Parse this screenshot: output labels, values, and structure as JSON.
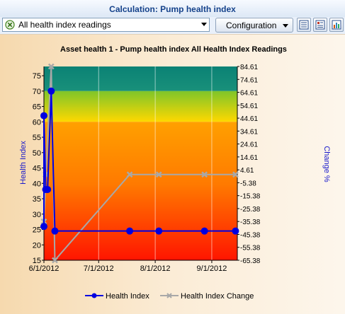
{
  "window": {
    "title": "Calculation: Pump health index"
  },
  "toolbar": {
    "selector_value": "All health index readings",
    "configuration_label": "Configuration"
  },
  "chart": {
    "title": "Asset health 1 - Pump health index All Health Index Readings",
    "y_left_label": "Health Index",
    "y_right_label": "Change %",
    "x_ticks": [
      "6/1/2012",
      "7/1/2012",
      "8/1/2012",
      "9/1/2012"
    ],
    "y_left_ticks": [
      "15",
      "20",
      "25",
      "30",
      "35",
      "40",
      "45",
      "50",
      "55",
      "60",
      "65",
      "70",
      "75"
    ],
    "y_right_ticks": [
      "84.61",
      "74.61",
      "64.61",
      "54.61",
      "44.61",
      "34.61",
      "24.61",
      "14.61",
      "4.61",
      "-5.38",
      "-15.38",
      "-25.38",
      "-35.38",
      "-45.38",
      "-55.38",
      "-65.38"
    ],
    "legend": [
      "Health Index",
      "Health Index Change"
    ]
  },
  "colors": {
    "health_index": "#0000e0",
    "health_index_change": "#a8a8a8",
    "axis_label": "#1a1acc"
  },
  "chart_data": {
    "type": "line",
    "x_axis": {
      "type": "date",
      "min": "2012-06-01",
      "max": "2012-09-15",
      "ticks": [
        "2012-06-01",
        "2012-07-01",
        "2012-08-01",
        "2012-09-01"
      ]
    },
    "ylim_left": [
      15,
      78
    ],
    "ylim_right": [
      -65.38,
      84.61
    ],
    "series": [
      {
        "name": "Health Index",
        "axis": "left",
        "points": [
          [
            "2012-06-01",
            26
          ],
          [
            "2012-06-01",
            62
          ],
          [
            "2012-06-02",
            38
          ],
          [
            "2012-06-03",
            38
          ],
          [
            "2012-06-05",
            70
          ],
          [
            "2012-06-07",
            24.5
          ],
          [
            "2012-07-18",
            24.5
          ],
          [
            "2012-08-03",
            24.5
          ],
          [
            "2012-08-28",
            24.5
          ],
          [
            "2012-09-14",
            24.5
          ]
        ]
      },
      {
        "name": "Health Index Change",
        "axis": "right",
        "points": [
          [
            "2012-06-01",
            -35.38
          ],
          [
            "2012-06-02",
            1
          ],
          [
            "2012-06-05",
            84.61
          ],
          [
            "2012-06-07",
            -65.38
          ],
          [
            "2012-07-18",
            1
          ],
          [
            "2012-08-03",
            1
          ],
          [
            "2012-08-28",
            1
          ],
          [
            "2012-09-14",
            1
          ]
        ]
      }
    ],
    "background_bands": [
      {
        "from": 70,
        "to": 78,
        "color": "teal"
      },
      {
        "from": 60,
        "to": 70,
        "color": "yellow-green"
      },
      {
        "from": 15,
        "to": 60,
        "color": "orange-to-red"
      }
    ]
  }
}
